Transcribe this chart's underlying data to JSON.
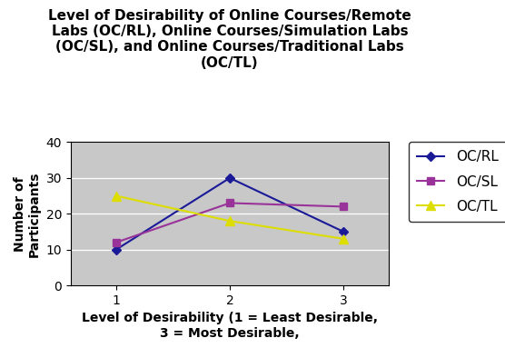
{
  "title_line1": "Level of Desirability of Online Courses/Remote",
  "title_line2": "Labs (OC/RL), Online Courses/Simulation Labs",
  "title_line3": "(OC/SL), and Online Courses/Traditional Labs",
  "title_line4": "(OC/TL)",
  "xlabel": "Level of Desirability (1 = Least Desirable,\n3 = Most Desirable,",
  "ylabel": "Number of\nParticipants",
  "x": [
    1,
    2,
    3
  ],
  "ocrl": [
    10,
    30,
    15
  ],
  "ocsl": [
    12,
    23,
    22
  ],
  "octl": [
    25,
    18,
    13
  ],
  "ocrl_color": "#1A1A99",
  "ocsl_color": "#993399",
  "octl_color": "#DDDD00",
  "ylim": [
    0,
    40
  ],
  "yticks": [
    0,
    10,
    20,
    30,
    40
  ],
  "xticks": [
    1,
    2,
    3
  ],
  "legend_labels": [
    "OC/RL",
    "OC/SL",
    "OC/TL"
  ],
  "plot_bg_color": "#C8C8C8",
  "fig_bg_color": "#FFFFFF",
  "title_fontsize": 11,
  "label_fontsize": 10,
  "tick_fontsize": 10,
  "legend_fontsize": 11
}
